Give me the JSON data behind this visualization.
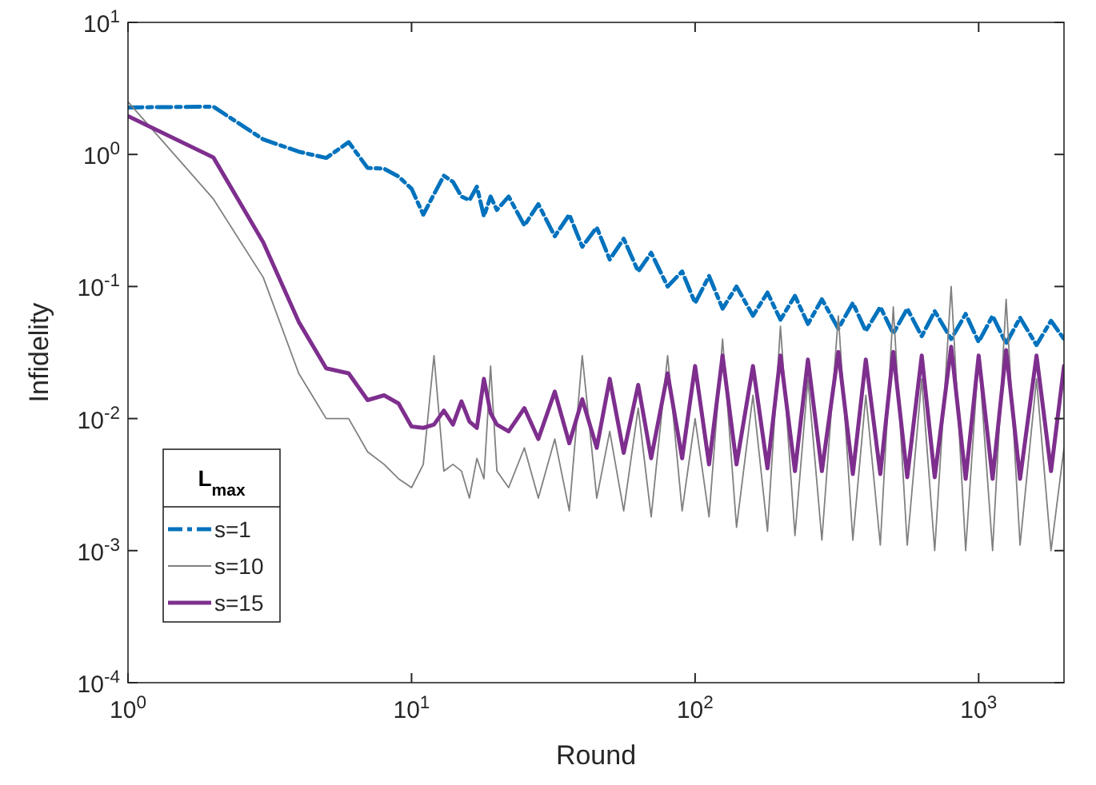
{
  "chart_data": {
    "type": "line",
    "xlabel": "Round",
    "ylabel": "Infidelity",
    "legend_title": "L$_{max}$",
    "legend": "bottom left",
    "log": "xy",
    "grid": false,
    "xlim": [
      1,
      2000
    ],
    "xticks": [
      {
        "value": 1,
        "label": "10$^{0}$"
      },
      {
        "value": 10,
        "label": "10$^{1}$"
      },
      {
        "value": 100,
        "label": "10$^{2}$"
      },
      {
        "value": 1000,
        "label": "10$^{3}$"
      }
    ],
    "ylim": [
      0.0001,
      10
    ],
    "yticks": [
      {
        "value": 0.0001,
        "label": "10$^{-4}$"
      },
      {
        "value": 0.001,
        "label": "10$^{-3}$"
      },
      {
        "value": 0.01,
        "label": "10$^{-2}$"
      },
      {
        "value": 0.1,
        "label": "10$^{-1}$"
      },
      {
        "value": 1,
        "label": "10$^{0}$"
      },
      {
        "value": 10,
        "label": "10$^{1}$"
      }
    ],
    "x": [
      1,
      2,
      3,
      4,
      5,
      6,
      7,
      8,
      9,
      10,
      11,
      12,
      13,
      14,
      15,
      16,
      17,
      18,
      19,
      20,
      22,
      25,
      28,
      32,
      36,
      40,
      45,
      50,
      56,
      63,
      70,
      80,
      90,
      100,
      112,
      125,
      140,
      160,
      180,
      200,
      225,
      250,
      280,
      320,
      360,
      400,
      450,
      500,
      560,
      630,
      700,
      800,
      900,
      1000,
      1120,
      1250,
      1400,
      1600,
      1800,
      2000
    ],
    "series": [
      {
        "name": "s=1",
        "color": "#0072bd",
        "line_style": "dashed",
        "values": [
          2.27,
          2.3,
          1.3,
          1.05,
          0.94,
          1.24,
          0.79,
          0.78,
          0.68,
          0.55,
          0.35,
          0.5,
          0.69,
          0.62,
          0.48,
          0.45,
          0.57,
          0.34,
          0.48,
          0.38,
          0.48,
          0.29,
          0.42,
          0.24,
          0.35,
          0.2,
          0.28,
          0.16,
          0.23,
          0.13,
          0.18,
          0.1,
          0.13,
          0.075,
          0.12,
          0.068,
          0.1,
          0.06,
          0.09,
          0.056,
          0.085,
          0.052,
          0.08,
          0.048,
          0.075,
          0.046,
          0.07,
          0.044,
          0.068,
          0.042,
          0.065,
          0.04,
          0.062,
          0.038,
          0.06,
          0.037,
          0.058,
          0.036,
          0.055,
          0.04
        ]
      },
      {
        "name": "s=10",
        "color": "#808080",
        "line_style": "solid",
        "values": [
          2.5,
          0.46,
          0.117,
          0.022,
          0.01,
          0.01,
          0.0056,
          0.0045,
          0.0035,
          0.003,
          0.0045,
          0.03,
          0.004,
          0.0045,
          0.004,
          0.0025,
          0.005,
          0.0035,
          0.025,
          0.004,
          0.003,
          0.006,
          0.0025,
          0.007,
          0.002,
          0.03,
          0.0025,
          0.008,
          0.002,
          0.012,
          0.0018,
          0.03,
          0.002,
          0.01,
          0.0018,
          0.04,
          0.0015,
          0.015,
          0.0014,
          0.05,
          0.0013,
          0.02,
          0.0012,
          0.06,
          0.0012,
          0.015,
          0.0011,
          0.07,
          0.0011,
          0.02,
          0.001,
          0.1,
          0.001,
          0.03,
          0.001,
          0.08,
          0.0011,
          0.02,
          0.001,
          0.006
        ]
      },
      {
        "name": "s=15",
        "color": "#7e2f8e",
        "line_style": "solid",
        "values": [
          1.95,
          0.95,
          0.216,
          0.054,
          0.024,
          0.022,
          0.0138,
          0.015,
          0.013,
          0.0087,
          0.0085,
          0.009,
          0.0115,
          0.009,
          0.0135,
          0.0095,
          0.0085,
          0.02,
          0.011,
          0.009,
          0.008,
          0.012,
          0.007,
          0.016,
          0.0065,
          0.014,
          0.006,
          0.02,
          0.0055,
          0.018,
          0.005,
          0.022,
          0.005,
          0.025,
          0.0045,
          0.03,
          0.0045,
          0.025,
          0.0042,
          0.03,
          0.004,
          0.028,
          0.004,
          0.032,
          0.0038,
          0.028,
          0.0038,
          0.032,
          0.0036,
          0.03,
          0.0036,
          0.035,
          0.0035,
          0.03,
          0.0035,
          0.033,
          0.0035,
          0.03,
          0.004,
          0.025
        ]
      }
    ]
  }
}
